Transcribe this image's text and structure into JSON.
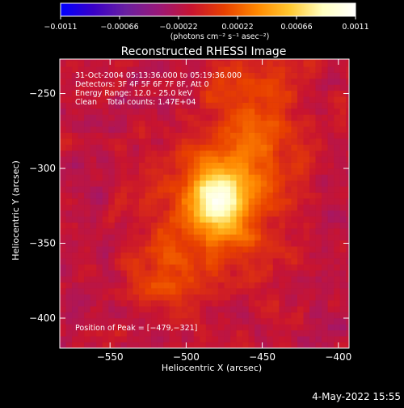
{
  "chart_data": {
    "type": "heatmap",
    "title": "Reconstructed RHESSI Image",
    "xlabel": "Heliocentric X (arcsec)",
    "ylabel": "Heliocentric Y (arcsec)",
    "xlim": [
      -583,
      -393
    ],
    "ylim": [
      -420,
      -227
    ],
    "xticks": [
      -550,
      -500,
      -450,
      -400
    ],
    "xtick_labels": [
      "−550",
      "−500",
      "−450",
      "−400"
    ],
    "yticks": [
      -250,
      -300,
      -350,
      -400
    ],
    "ytick_labels": [
      "−250",
      "−300",
      "−350",
      "−400"
    ],
    "colorbar": {
      "min": -0.0011,
      "max": 0.0011,
      "ticks": [
        -0.0011,
        -0.00066,
        -0.00022,
        0.00022,
        0.00066,
        0.0011
      ],
      "tick_labels": [
        "−0.0011",
        "−0.00066",
        "−0.00022",
        "0.00022",
        "0.00066",
        "0.0011"
      ],
      "unit_label": "(photons cm⁻² s⁻¹ asec⁻²)",
      "colormap": [
        "#0000ff",
        "#3a00c8",
        "#6a20a0",
        "#9a1878",
        "#c81430",
        "#e84000",
        "#ff8800",
        "#ffc830",
        "#ffffc0",
        "#ffffff"
      ]
    },
    "annotations": [
      "31-Oct-2004 05:13:36.000 to 05:19:36.000",
      "Detectors: 3F 4F 5F 6F 7F 8F, Att 0",
      "Energy Range: 12.0 - 25.0 keV",
      "Clean    Total counts: 1.47E+04"
    ],
    "peak_label": "Position of Peak = [−479,−321]",
    "peak": [
      -479,
      -321
    ],
    "grid": false,
    "image_grid": {
      "pixel_size_arcsec": 4,
      "description": "Clean image, bright compact source at the peak with a diffuse red/orange plume extending toward upper-right, low-level mottled background"
    }
  },
  "footer": {
    "timestamp": "4-May-2022 15:55"
  }
}
